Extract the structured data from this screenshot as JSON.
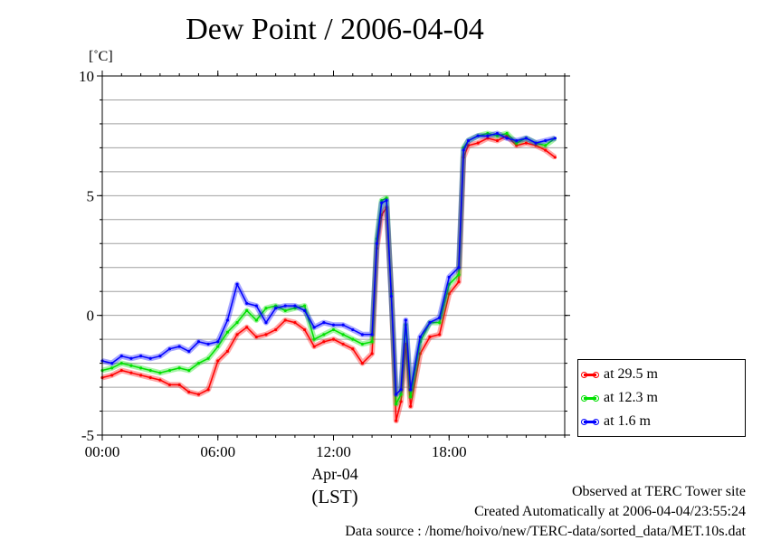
{
  "chart_data": {
    "type": "line",
    "title": "Dew Point / 2006-04-04",
    "ylabel": "[˚C]",
    "xlabel_date": "Apr-04",
    "xlabel_zone": "(LST)",
    "ylim": [
      -5,
      10
    ],
    "xlim": [
      0,
      24
    ],
    "y_ticks": [
      -5,
      0,
      5,
      10
    ],
    "x_ticks": [
      0,
      6,
      12,
      18
    ],
    "x_tick_labels": [
      "00:00",
      "06:00",
      "12:00",
      "18:00"
    ],
    "grid": true,
    "legend_position": "bottom-right-outside",
    "x": [
      0,
      0.5,
      1,
      1.5,
      2,
      2.5,
      3,
      3.5,
      4,
      4.5,
      5,
      5.5,
      6,
      6.5,
      7,
      7.5,
      8,
      8.5,
      9,
      9.5,
      10,
      10.5,
      11,
      11.5,
      12,
      12.5,
      13,
      13.5,
      14,
      14.25,
      14.5,
      14.75,
      15,
      15.25,
      15.5,
      15.75,
      16,
      16.5,
      17,
      17.5,
      18,
      18.5,
      18.75,
      19,
      19.5,
      20,
      20.5,
      21,
      21.5,
      22,
      22.5,
      23,
      23.5
    ],
    "series": [
      {
        "name": "at 29.5 m",
        "color": "#ff0000",
        "values": [
          -2.6,
          -2.5,
          -2.3,
          -2.4,
          -2.5,
          -2.6,
          -2.7,
          -2.9,
          -2.9,
          -3.2,
          -3.3,
          -3.1,
          -1.9,
          -1.5,
          -0.8,
          -0.5,
          -0.9,
          -0.8,
          -0.6,
          -0.2,
          -0.3,
          -0.6,
          -1.3,
          -1.1,
          -1.0,
          -1.2,
          -1.4,
          -2.0,
          -1.6,
          2.8,
          4.2,
          4.5,
          1.0,
          -4.4,
          -3.6,
          -1.2,
          -3.8,
          -1.6,
          -0.9,
          -0.8,
          0.9,
          1.4,
          6.6,
          7.1,
          7.2,
          7.4,
          7.3,
          7.5,
          7.1,
          7.2,
          7.1,
          6.9,
          6.6
        ]
      },
      {
        "name": "at 12.3 m",
        "color": "#00e000",
        "values": [
          -2.3,
          -2.2,
          -2.0,
          -2.1,
          -2.2,
          -2.3,
          -2.4,
          -2.3,
          -2.2,
          -2.3,
          -2.0,
          -1.8,
          -1.3,
          -0.7,
          -0.3,
          0.2,
          -0.2,
          0.3,
          0.4,
          0.2,
          0.3,
          0.4,
          -1.0,
          -0.8,
          -0.6,
          -0.8,
          -1.0,
          -1.2,
          -1.1,
          3.2,
          4.8,
          4.9,
          0.9,
          -3.7,
          -3.3,
          -0.4,
          -3.4,
          -1.1,
          -0.3,
          -0.3,
          1.3,
          1.7,
          7.0,
          7.3,
          7.5,
          7.6,
          7.5,
          7.6,
          7.2,
          7.4,
          7.2,
          7.1,
          7.4
        ]
      },
      {
        "name": "at 1.6 m",
        "color": "#0000ff",
        "values": [
          -1.9,
          -2.0,
          -1.7,
          -1.8,
          -1.7,
          -1.8,
          -1.7,
          -1.4,
          -1.3,
          -1.5,
          -1.1,
          -1.2,
          -1.1,
          -0.2,
          1.3,
          0.5,
          0.4,
          -0.3,
          0.3,
          0.4,
          0.4,
          0.2,
          -0.5,
          -0.3,
          -0.4,
          -0.4,
          -0.6,
          -0.8,
          -0.8,
          3.0,
          4.7,
          4.8,
          0.8,
          -3.3,
          -3.1,
          -0.2,
          -3.1,
          -0.9,
          -0.3,
          -0.1,
          1.6,
          2.0,
          6.9,
          7.3,
          7.5,
          7.5,
          7.6,
          7.4,
          7.3,
          7.4,
          7.2,
          7.3,
          7.4
        ]
      }
    ]
  },
  "footer": {
    "observed": "Observed at TERC Tower site",
    "created": "Created Automatically at 2006-04-04/23:55:24",
    "source": "Data source : /home/hoivo/new/TERC-data/sorted_data/MET.10s.dat"
  }
}
